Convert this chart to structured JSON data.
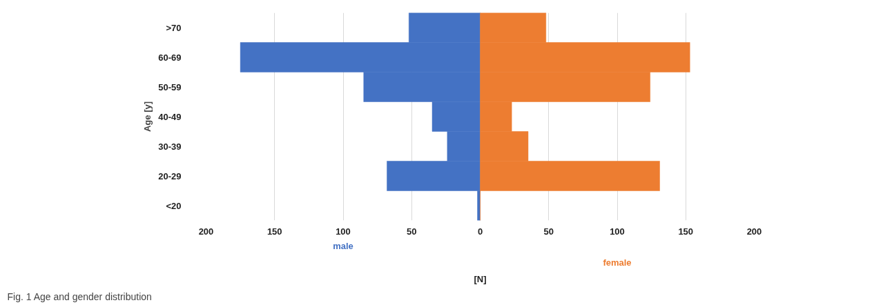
{
  "chart_data": {
    "type": "bar",
    "orientation": "horizontal",
    "stacked": true,
    "ylabel": "Age [y]",
    "xlabel": "[N]",
    "categories": [
      ">70",
      "60-69",
      "50-59",
      "40-49",
      "30-39",
      "20-29",
      "<20"
    ],
    "series": [
      {
        "name": "male",
        "color": "#4472c4",
        "values": [
          -52,
          -175,
          -85,
          -35,
          -24,
          -68,
          -2
        ]
      },
      {
        "name": "female",
        "color": "#ed7d31",
        "values": [
          48,
          153,
          124,
          23,
          35,
          131,
          0
        ]
      }
    ],
    "xlim": [
      -200,
      200
    ],
    "xticks": [
      {
        "value": -200,
        "label": "200"
      },
      {
        "value": -150,
        "label": "150"
      },
      {
        "value": -100,
        "label": "100"
      },
      {
        "value": -50,
        "label": "50"
      },
      0,
      50,
      100,
      150,
      200
    ],
    "grid": "x",
    "annotations": [
      "Fig. 1 Age and gender distribution"
    ]
  }
}
